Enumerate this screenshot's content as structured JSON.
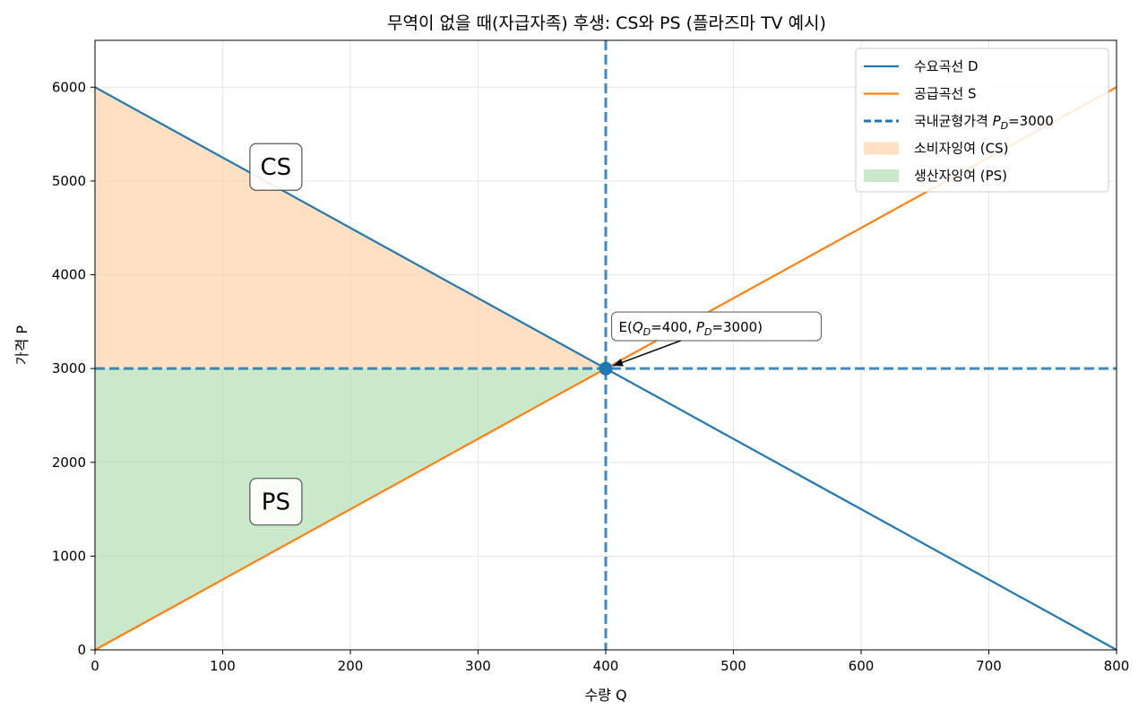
{
  "chart_data": {
    "type": "line",
    "title": "무역이 없을 때(자급자족) 후생: CS와 PS (플라즈마 TV 예시)",
    "xlabel": "수량 Q",
    "ylabel": "가격 P",
    "xlim": [
      0,
      800
    ],
    "ylim": [
      0,
      6500
    ],
    "xticks": [
      0,
      100,
      200,
      300,
      400,
      500,
      600,
      700,
      800
    ],
    "yticks": [
      0,
      1000,
      2000,
      3000,
      4000,
      5000,
      6000
    ],
    "grid": true,
    "legend_position": "top-right",
    "series": [
      {
        "name": "수요곡선 D",
        "color": "#1f77b4",
        "x": [
          0,
          800
        ],
        "y": [
          6000,
          0
        ],
        "style": "solid"
      },
      {
        "name": "공급곡선 S",
        "color": "#ff7f0e",
        "x": [
          0,
          800
        ],
        "y": [
          0,
          6000
        ],
        "style": "solid"
      }
    ],
    "reference_lines": [
      {
        "name": "국내균형가격",
        "legend_math_base": "P",
        "legend_math_sub": "D",
        "legend_suffix": "=3000",
        "orientation": "horizontal",
        "value": 3000,
        "color": "#1f77b4",
        "style": "dashed"
      },
      {
        "orientation": "vertical",
        "value": 400,
        "color": "#1f77b4",
        "style": "dashed"
      }
    ],
    "areas": [
      {
        "name": "소비자잉여 (CS)",
        "color": "#ffcc99",
        "polygon": [
          [
            0,
            6000
          ],
          [
            400,
            3000
          ],
          [
            0,
            3000
          ]
        ],
        "label": "CS",
        "label_at": [
          115,
          5150
        ]
      },
      {
        "name": "생산자잉여 (PS)",
        "color": "#a6d8a6",
        "polygon": [
          [
            0,
            0
          ],
          [
            400,
            3000
          ],
          [
            0,
            3000
          ]
        ],
        "label": "PS",
        "label_at": [
          115,
          1580
        ]
      }
    ],
    "points": [
      {
        "x": 400,
        "y": 3000,
        "color": "#1f77b4"
      }
    ],
    "annotation": {
      "text_prefix": "E(",
      "q_base": "Q",
      "q_sub": "D",
      "q_value": "=400, ",
      "p_base": "P",
      "p_sub": "D",
      "p_value": "=3000)",
      "target": [
        400,
        3000
      ],
      "text_at": [
        420,
        3450
      ]
    }
  }
}
